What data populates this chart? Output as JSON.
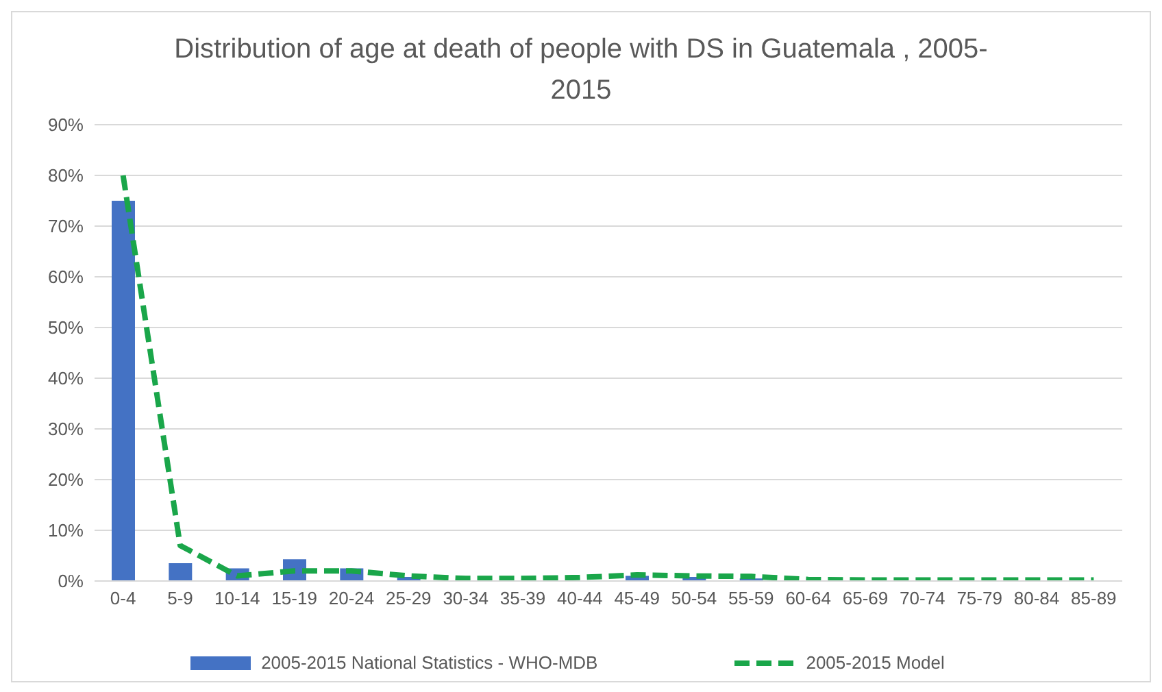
{
  "chart_data": {
    "type": "bar",
    "title": "Distribution of age at death of people with DS in Guatemala , 2005-2015",
    "categories": [
      "0-4",
      "5-9",
      "10-14",
      "15-19",
      "20-24",
      "25-29",
      "30-34",
      "35-39",
      "40-44",
      "45-49",
      "50-54",
      "55-59",
      "60-64",
      "65-69",
      "70-74",
      "75-79",
      "80-84",
      "85-89"
    ],
    "series": [
      {
        "name": "2005-2015 National Statistics - WHO-MDB",
        "color": "#4472c4",
        "values": [
          75,
          3.5,
          2.5,
          4.3,
          2.5,
          0.8,
          null,
          null,
          null,
          1,
          0.8,
          0.5,
          null,
          null,
          null,
          null,
          null,
          null
        ]
      },
      {
        "name": "2005-2015 Model",
        "type": "line",
        "color": "#1aa64a",
        "line_style": "dashed",
        "marker": "none",
        "values": [
          80,
          7,
          1,
          2,
          2,
          1,
          0.5,
          0.5,
          0.7,
          1.2,
          1,
          0.9,
          0.3,
          0.2,
          0.2,
          0.2,
          0.2,
          0.2
        ]
      }
    ],
    "ylim": [
      0,
      90
    ],
    "yticks": [
      {
        "value": 0,
        "label": "0%"
      },
      {
        "value": 10,
        "label": "10%"
      },
      {
        "value": 20,
        "label": "20%"
      },
      {
        "value": 30,
        "label": "30%"
      },
      {
        "value": 40,
        "label": "40%"
      },
      {
        "value": 50,
        "label": "50%"
      },
      {
        "value": 60,
        "label": "60%"
      },
      {
        "value": 70,
        "label": "70%"
      },
      {
        "value": 80,
        "label": "80%"
      },
      {
        "value": 90,
        "label": "90%"
      }
    ],
    "grid": "y",
    "legend": "bottom"
  }
}
